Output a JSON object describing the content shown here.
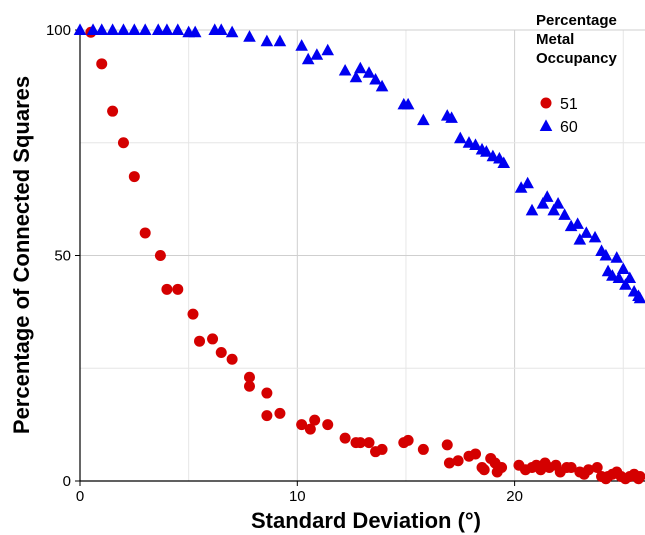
{
  "chart_data": {
    "type": "scatter",
    "title": "",
    "xlabel": "Standard Deviation (°)",
    "ylabel": "Percentage of Connected Squares",
    "xlim": [
      0,
      26
    ],
    "ylim": [
      0,
      100
    ],
    "x_ticks": [
      0,
      10,
      20
    ],
    "y_ticks": [
      0,
      50,
      100
    ],
    "grid": true,
    "legend": {
      "title": "Percentage Metal Occupancy",
      "title_lines": [
        "Percentage",
        "Metal",
        "Occupancy"
      ],
      "placement": "top-right"
    },
    "series": [
      {
        "name": "51",
        "marker": "circle",
        "color": "#d40000",
        "points": [
          [
            0.5,
            99.5
          ],
          [
            1.0,
            92.5
          ],
          [
            1.5,
            82.0
          ],
          [
            2.0,
            75.0
          ],
          [
            2.5,
            67.5
          ],
          [
            3.0,
            55.0
          ],
          [
            3.7,
            50.0
          ],
          [
            4.0,
            42.5
          ],
          [
            4.5,
            42.5
          ],
          [
            5.2,
            37.0
          ],
          [
            5.5,
            31.0
          ],
          [
            6.1,
            31.5
          ],
          [
            6.5,
            28.5
          ],
          [
            7.0,
            27.0
          ],
          [
            7.8,
            23.0
          ],
          [
            7.8,
            21.0
          ],
          [
            8.6,
            19.5
          ],
          [
            8.6,
            14.5
          ],
          [
            9.2,
            15.0
          ],
          [
            10.2,
            12.5
          ],
          [
            10.6,
            11.5
          ],
          [
            10.8,
            13.5
          ],
          [
            11.4,
            12.5
          ],
          [
            12.2,
            9.5
          ],
          [
            12.7,
            8.5
          ],
          [
            12.9,
            8.5
          ],
          [
            13.3,
            8.5
          ],
          [
            13.6,
            6.5
          ],
          [
            13.9,
            7.0
          ],
          [
            14.9,
            8.5
          ],
          [
            15.1,
            9.0
          ],
          [
            15.8,
            7.0
          ],
          [
            16.9,
            8.0
          ],
          [
            17.0,
            4.0
          ],
          [
            17.4,
            4.5
          ],
          [
            17.9,
            5.5
          ],
          [
            18.2,
            6.0
          ],
          [
            18.5,
            3.0
          ],
          [
            18.6,
            2.5
          ],
          [
            18.9,
            5.0
          ],
          [
            19.1,
            4.0
          ],
          [
            19.2,
            2.0
          ],
          [
            19.4,
            3.0
          ],
          [
            20.2,
            3.5
          ],
          [
            20.5,
            2.5
          ],
          [
            20.8,
            3.0
          ],
          [
            21.0,
            3.5
          ],
          [
            21.2,
            2.5
          ],
          [
            21.4,
            4.0
          ],
          [
            21.6,
            3.0
          ],
          [
            21.9,
            3.5
          ],
          [
            22.1,
            2.0
          ],
          [
            22.4,
            3.0
          ],
          [
            22.6,
            3.0
          ],
          [
            23.0,
            2.0
          ],
          [
            23.2,
            1.5
          ],
          [
            23.4,
            2.5
          ],
          [
            23.8,
            3.0
          ],
          [
            24.0,
            1.0
          ],
          [
            24.2,
            0.5
          ],
          [
            24.3,
            1.0
          ],
          [
            24.5,
            1.5
          ],
          [
            24.7,
            2.0
          ],
          [
            24.9,
            1.0
          ],
          [
            25.1,
            0.5
          ],
          [
            25.3,
            1.0
          ],
          [
            25.5,
            1.5
          ],
          [
            25.7,
            0.5
          ],
          [
            25.9,
            1.0
          ]
        ]
      },
      {
        "name": "60",
        "marker": "triangle",
        "color": "#0000f0",
        "points": [
          [
            0.0,
            100
          ],
          [
            0.6,
            100
          ],
          [
            1.0,
            100
          ],
          [
            1.5,
            100
          ],
          [
            2.0,
            100
          ],
          [
            2.5,
            100
          ],
          [
            3.0,
            100
          ],
          [
            3.6,
            100
          ],
          [
            4.0,
            100
          ],
          [
            4.5,
            100
          ],
          [
            5.0,
            99.5
          ],
          [
            5.3,
            99.5
          ],
          [
            6.2,
            100
          ],
          [
            6.5,
            100
          ],
          [
            7.0,
            99.5
          ],
          [
            7.8,
            98.5
          ],
          [
            8.6,
            97.5
          ],
          [
            9.2,
            97.5
          ],
          [
            10.2,
            96.5
          ],
          [
            10.5,
            93.5
          ],
          [
            10.9,
            94.5
          ],
          [
            11.4,
            95.5
          ],
          [
            12.2,
            91.0
          ],
          [
            12.7,
            89.5
          ],
          [
            12.9,
            91.5
          ],
          [
            13.3,
            90.5
          ],
          [
            13.6,
            89.0
          ],
          [
            13.9,
            87.5
          ],
          [
            14.9,
            83.5
          ],
          [
            15.1,
            83.5
          ],
          [
            15.8,
            80.0
          ],
          [
            16.9,
            81.0
          ],
          [
            17.1,
            80.5
          ],
          [
            17.5,
            76.0
          ],
          [
            17.9,
            75.0
          ],
          [
            18.2,
            74.5
          ],
          [
            18.5,
            73.5
          ],
          [
            18.7,
            73.0
          ],
          [
            19.0,
            72.0
          ],
          [
            19.3,
            71.5
          ],
          [
            19.5,
            70.5
          ],
          [
            20.3,
            65.0
          ],
          [
            20.6,
            66.0
          ],
          [
            20.8,
            60.0
          ],
          [
            21.3,
            61.5
          ],
          [
            21.5,
            63.0
          ],
          [
            21.8,
            60.0
          ],
          [
            22.0,
            61.5
          ],
          [
            22.3,
            59.0
          ],
          [
            22.6,
            56.5
          ],
          [
            22.9,
            57.0
          ],
          [
            23.0,
            53.5
          ],
          [
            23.3,
            55.0
          ],
          [
            23.7,
            54.0
          ],
          [
            24.0,
            51.0
          ],
          [
            24.2,
            50.0
          ],
          [
            24.3,
            46.5
          ],
          [
            24.5,
            45.5
          ],
          [
            24.7,
            49.5
          ],
          [
            24.8,
            45.0
          ],
          [
            25.0,
            47.0
          ],
          [
            25.1,
            43.5
          ],
          [
            25.3,
            45.0
          ],
          [
            25.5,
            42.0
          ],
          [
            25.7,
            41.0
          ],
          [
            25.9,
            40.5
          ]
        ]
      }
    ]
  }
}
